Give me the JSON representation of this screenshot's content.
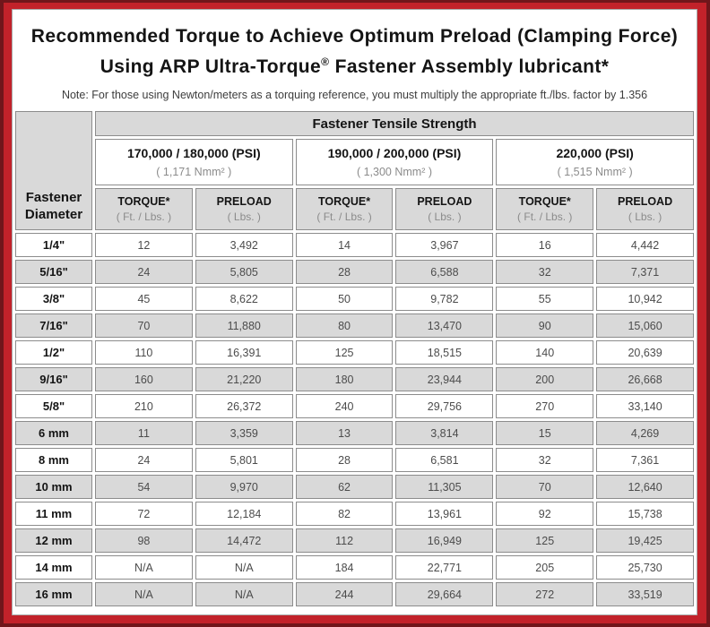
{
  "colors": {
    "frame_outer": "#70161b",
    "frame_inner": "#c2222a",
    "cell_shade": "#d9d9d9"
  },
  "title": {
    "line1": "Recommended Torque to Achieve Optimum Preload (Clamping Force)",
    "line2_pre": "Using ARP Ultra-Torque",
    "line2_reg": "®",
    "line2_post": " Fastener Assembly lubricant*"
  },
  "note": "Note: For those using Newton/meters as a torquing reference, you must multiply the appropriate ft./lbs. factor by 1.356",
  "table": {
    "corner_header_line1": "Fastener",
    "corner_header_line2": "Diameter",
    "tensile_header": "Fastener Tensile Strength",
    "groups": [
      {
        "psi": "170,000 / 180,000 (PSI)",
        "nmm": "( 1,171 Nmm² )"
      },
      {
        "psi": "190,000 / 200,000 (PSI)",
        "nmm": "( 1,300 Nmm² )"
      },
      {
        "psi": "220,000 (PSI)",
        "nmm": "( 1,515 Nmm² )"
      }
    ],
    "sub_headers": [
      {
        "label": "TORQUE*",
        "unit": "( Ft. / Lbs. )"
      },
      {
        "label": "PRELOAD",
        "unit": "( Lbs. )"
      },
      {
        "label": "TORQUE*",
        "unit": "( Ft. / Lbs. )"
      },
      {
        "label": "PRELOAD",
        "unit": "( Lbs. )"
      },
      {
        "label": "TORQUE*",
        "unit": "( Ft. / Lbs. )"
      },
      {
        "label": "PRELOAD",
        "unit": "( Lbs. )"
      }
    ],
    "rows": [
      {
        "diameter": "1/4\"",
        "values": [
          "12",
          "3,492",
          "14",
          "3,967",
          "16",
          "4,442"
        ]
      },
      {
        "diameter": "5/16\"",
        "values": [
          "24",
          "5,805",
          "28",
          "6,588",
          "32",
          "7,371"
        ]
      },
      {
        "diameter": "3/8\"",
        "values": [
          "45",
          "8,622",
          "50",
          "9,782",
          "55",
          "10,942"
        ]
      },
      {
        "diameter": "7/16\"",
        "values": [
          "70",
          "11,880",
          "80",
          "13,470",
          "90",
          "15,060"
        ]
      },
      {
        "diameter": "1/2\"",
        "values": [
          "110",
          "16,391",
          "125",
          "18,515",
          "140",
          "20,639"
        ]
      },
      {
        "diameter": "9/16\"",
        "values": [
          "160",
          "21,220",
          "180",
          "23,944",
          "200",
          "26,668"
        ]
      },
      {
        "diameter": "5/8\"",
        "values": [
          "210",
          "26,372",
          "240",
          "29,756",
          "270",
          "33,140"
        ]
      },
      {
        "diameter": "6 mm",
        "values": [
          "11",
          "3,359",
          "13",
          "3,814",
          "15",
          "4,269"
        ]
      },
      {
        "diameter": "8 mm",
        "values": [
          "24",
          "5,801",
          "28",
          "6,581",
          "32",
          "7,361"
        ]
      },
      {
        "diameter": "10 mm",
        "values": [
          "54",
          "9,970",
          "62",
          "11,305",
          "70",
          "12,640"
        ]
      },
      {
        "diameter": "11 mm",
        "values": [
          "72",
          "12,184",
          "82",
          "13,961",
          "92",
          "15,738"
        ]
      },
      {
        "diameter": "12 mm",
        "values": [
          "98",
          "14,472",
          "112",
          "16,949",
          "125",
          "19,425"
        ]
      },
      {
        "diameter": "14 mm",
        "values": [
          "N/A",
          "N/A",
          "184",
          "22,771",
          "205",
          "25,730"
        ]
      },
      {
        "diameter": "16 mm",
        "values": [
          "N/A",
          "N/A",
          "244",
          "29,664",
          "272",
          "33,519"
        ]
      }
    ]
  }
}
